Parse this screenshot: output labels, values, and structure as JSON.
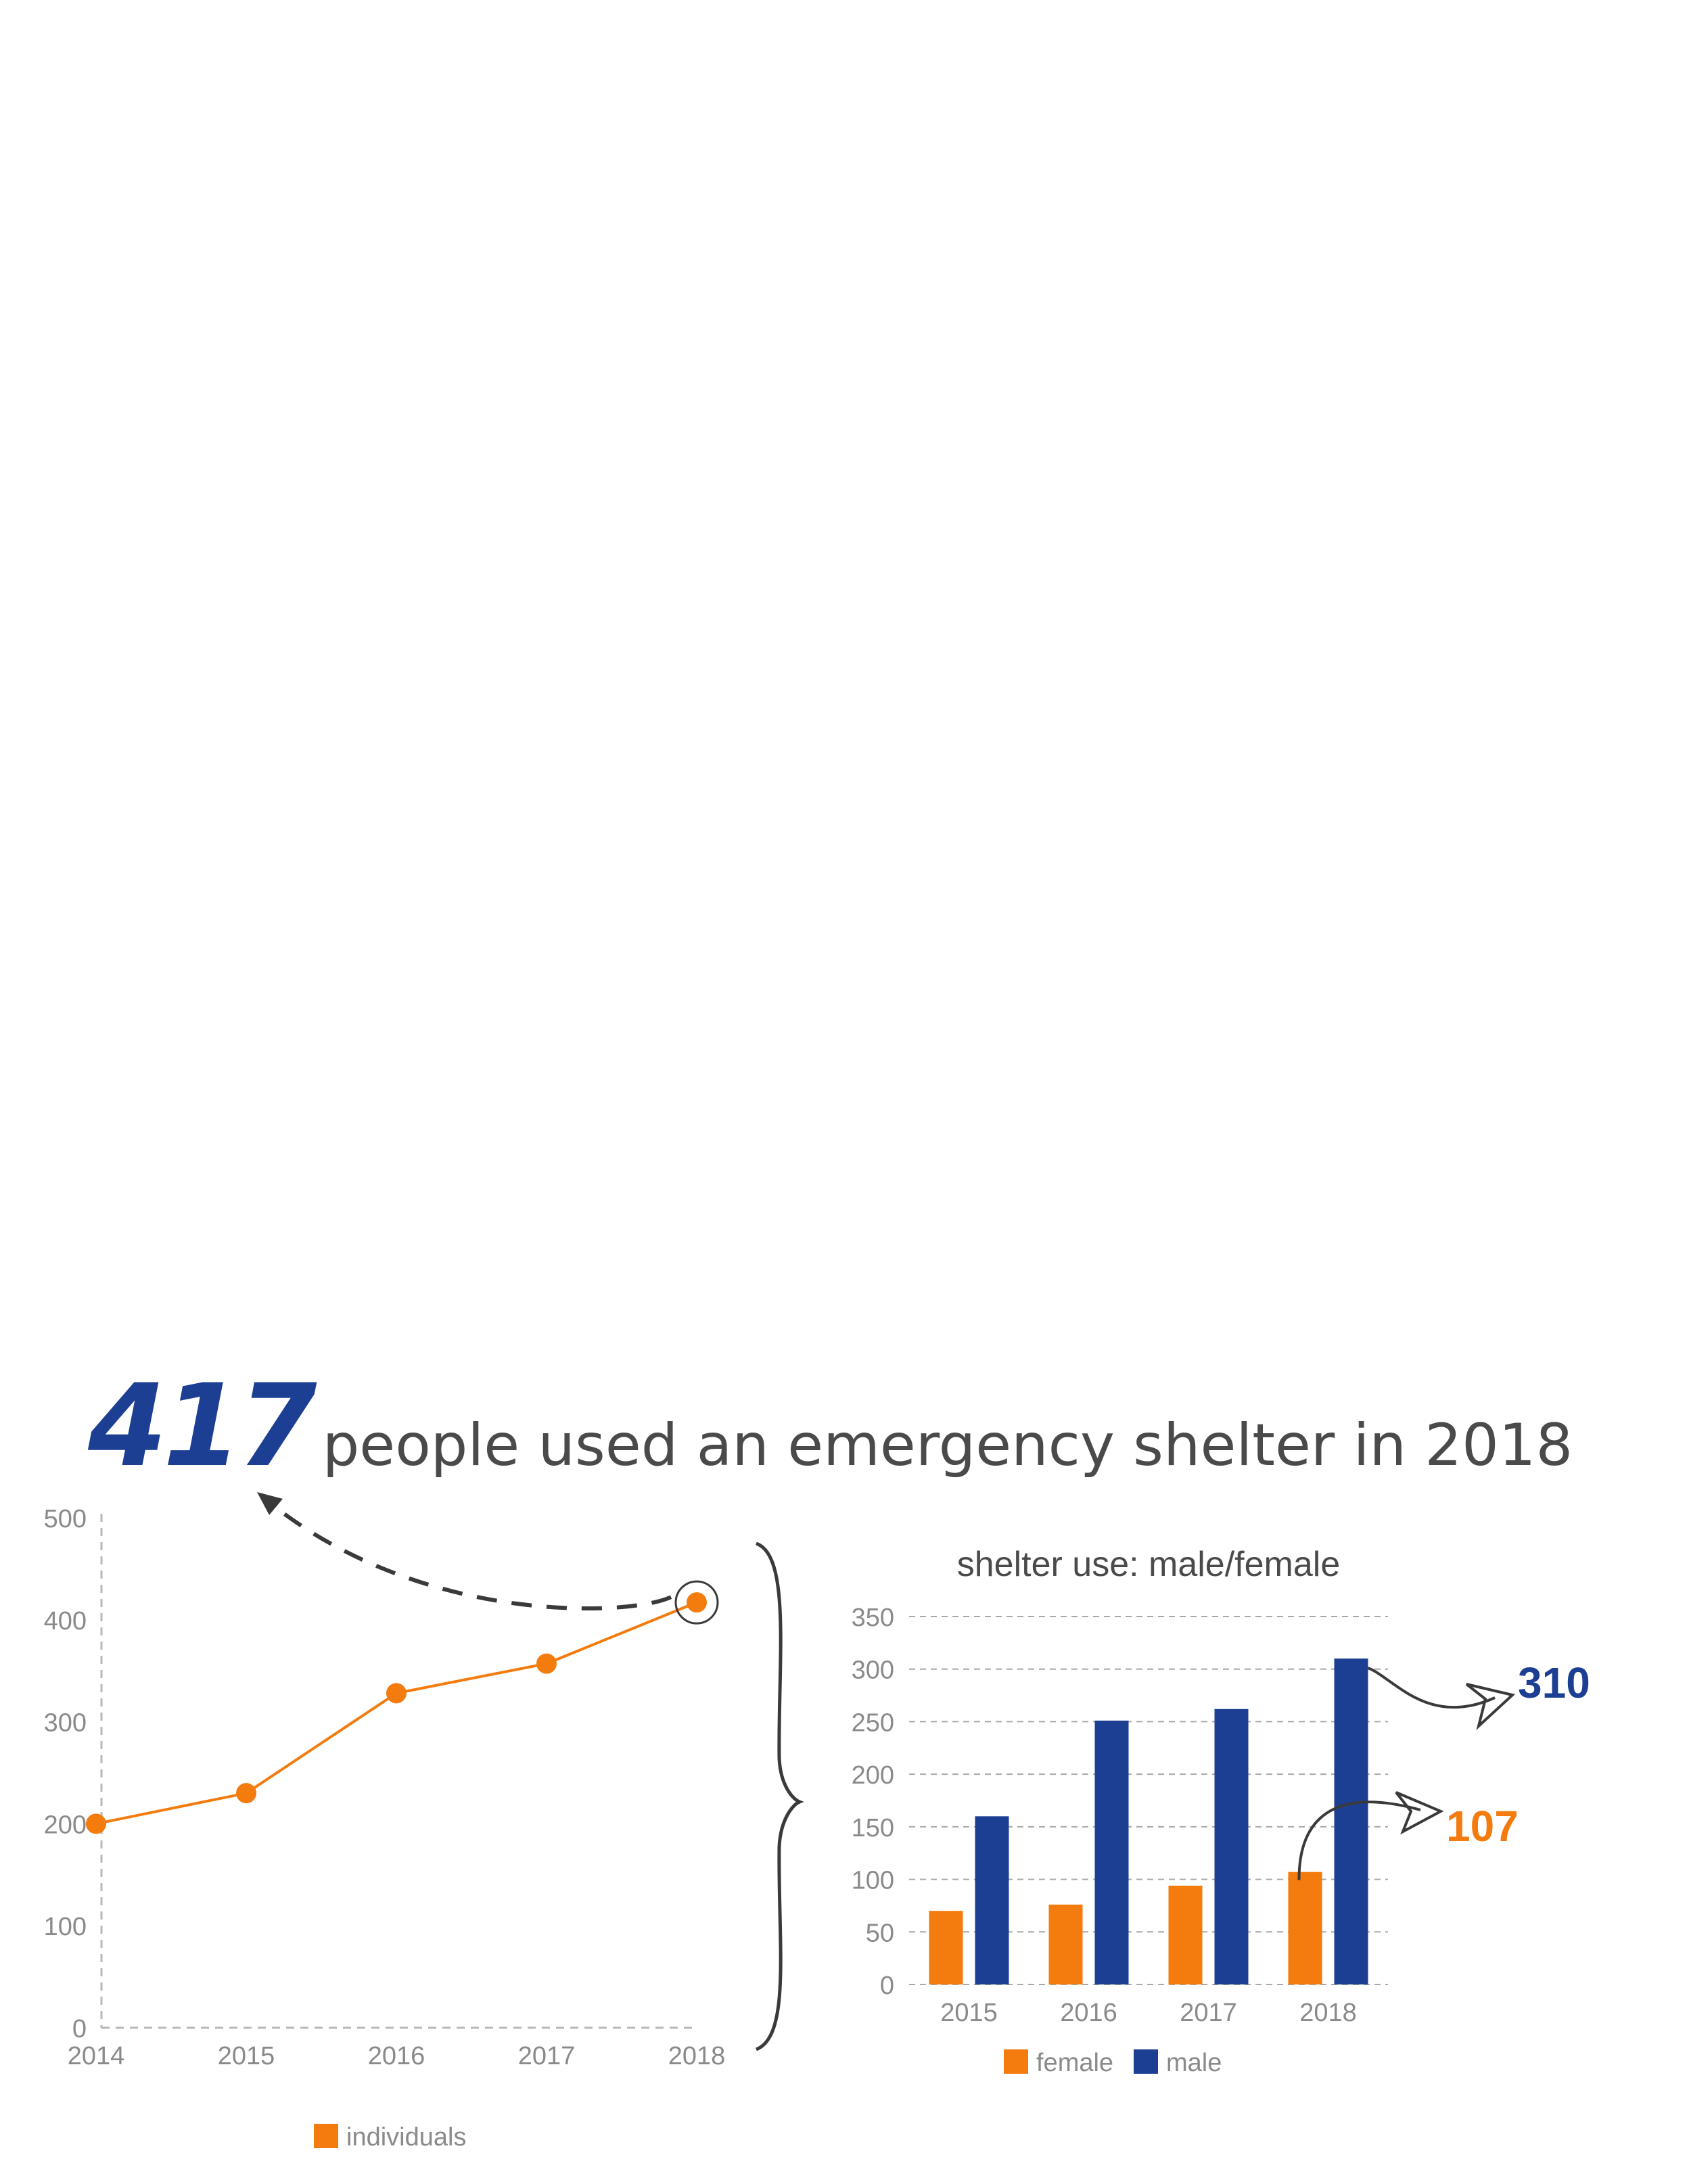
{
  "headline": {
    "number": "417",
    "text": "people used an emergency shelter in 2018"
  },
  "colors": {
    "orange": "#f47b0e",
    "blue": "#1c3f94",
    "text_gray": "#8a8a8a",
    "dark": "#4a4a4a"
  },
  "chart_data": [
    {
      "type": "line",
      "title": "",
      "x": [
        "2014",
        "2015",
        "2016",
        "2017",
        "2018"
      ],
      "series": [
        {
          "name": "individuals",
          "values": [
            200,
            230,
            328,
            357,
            417
          ],
          "color": "#f47b0e"
        }
      ],
      "ylim": [
        0,
        500
      ],
      "yticks": [
        0,
        100,
        200,
        300,
        400,
        500
      ],
      "grid": false,
      "legend": "bottom",
      "highlight": {
        "x": "2018",
        "note": "circled and linked by dashed arrow to headline"
      }
    },
    {
      "type": "bar",
      "title": "shelter use: male/female",
      "categories": [
        "2015",
        "2016",
        "2017",
        "2018"
      ],
      "series": [
        {
          "name": "female",
          "values": [
            70,
            76,
            94,
            107
          ],
          "color": "#f47b0e"
        },
        {
          "name": "male",
          "values": [
            160,
            251,
            262,
            310
          ],
          "color": "#1c3f94"
        }
      ],
      "ylim": [
        0,
        350
      ],
      "yticks": [
        0,
        50,
        100,
        150,
        200,
        250,
        300,
        350
      ],
      "grid": true,
      "legend": "bottom",
      "annotations": [
        {
          "text": "310",
          "series": "male",
          "category": "2018",
          "color": "#1c3f94"
        },
        {
          "text": "107",
          "series": "female",
          "category": "2018",
          "color": "#f47b0e"
        }
      ]
    }
  ]
}
